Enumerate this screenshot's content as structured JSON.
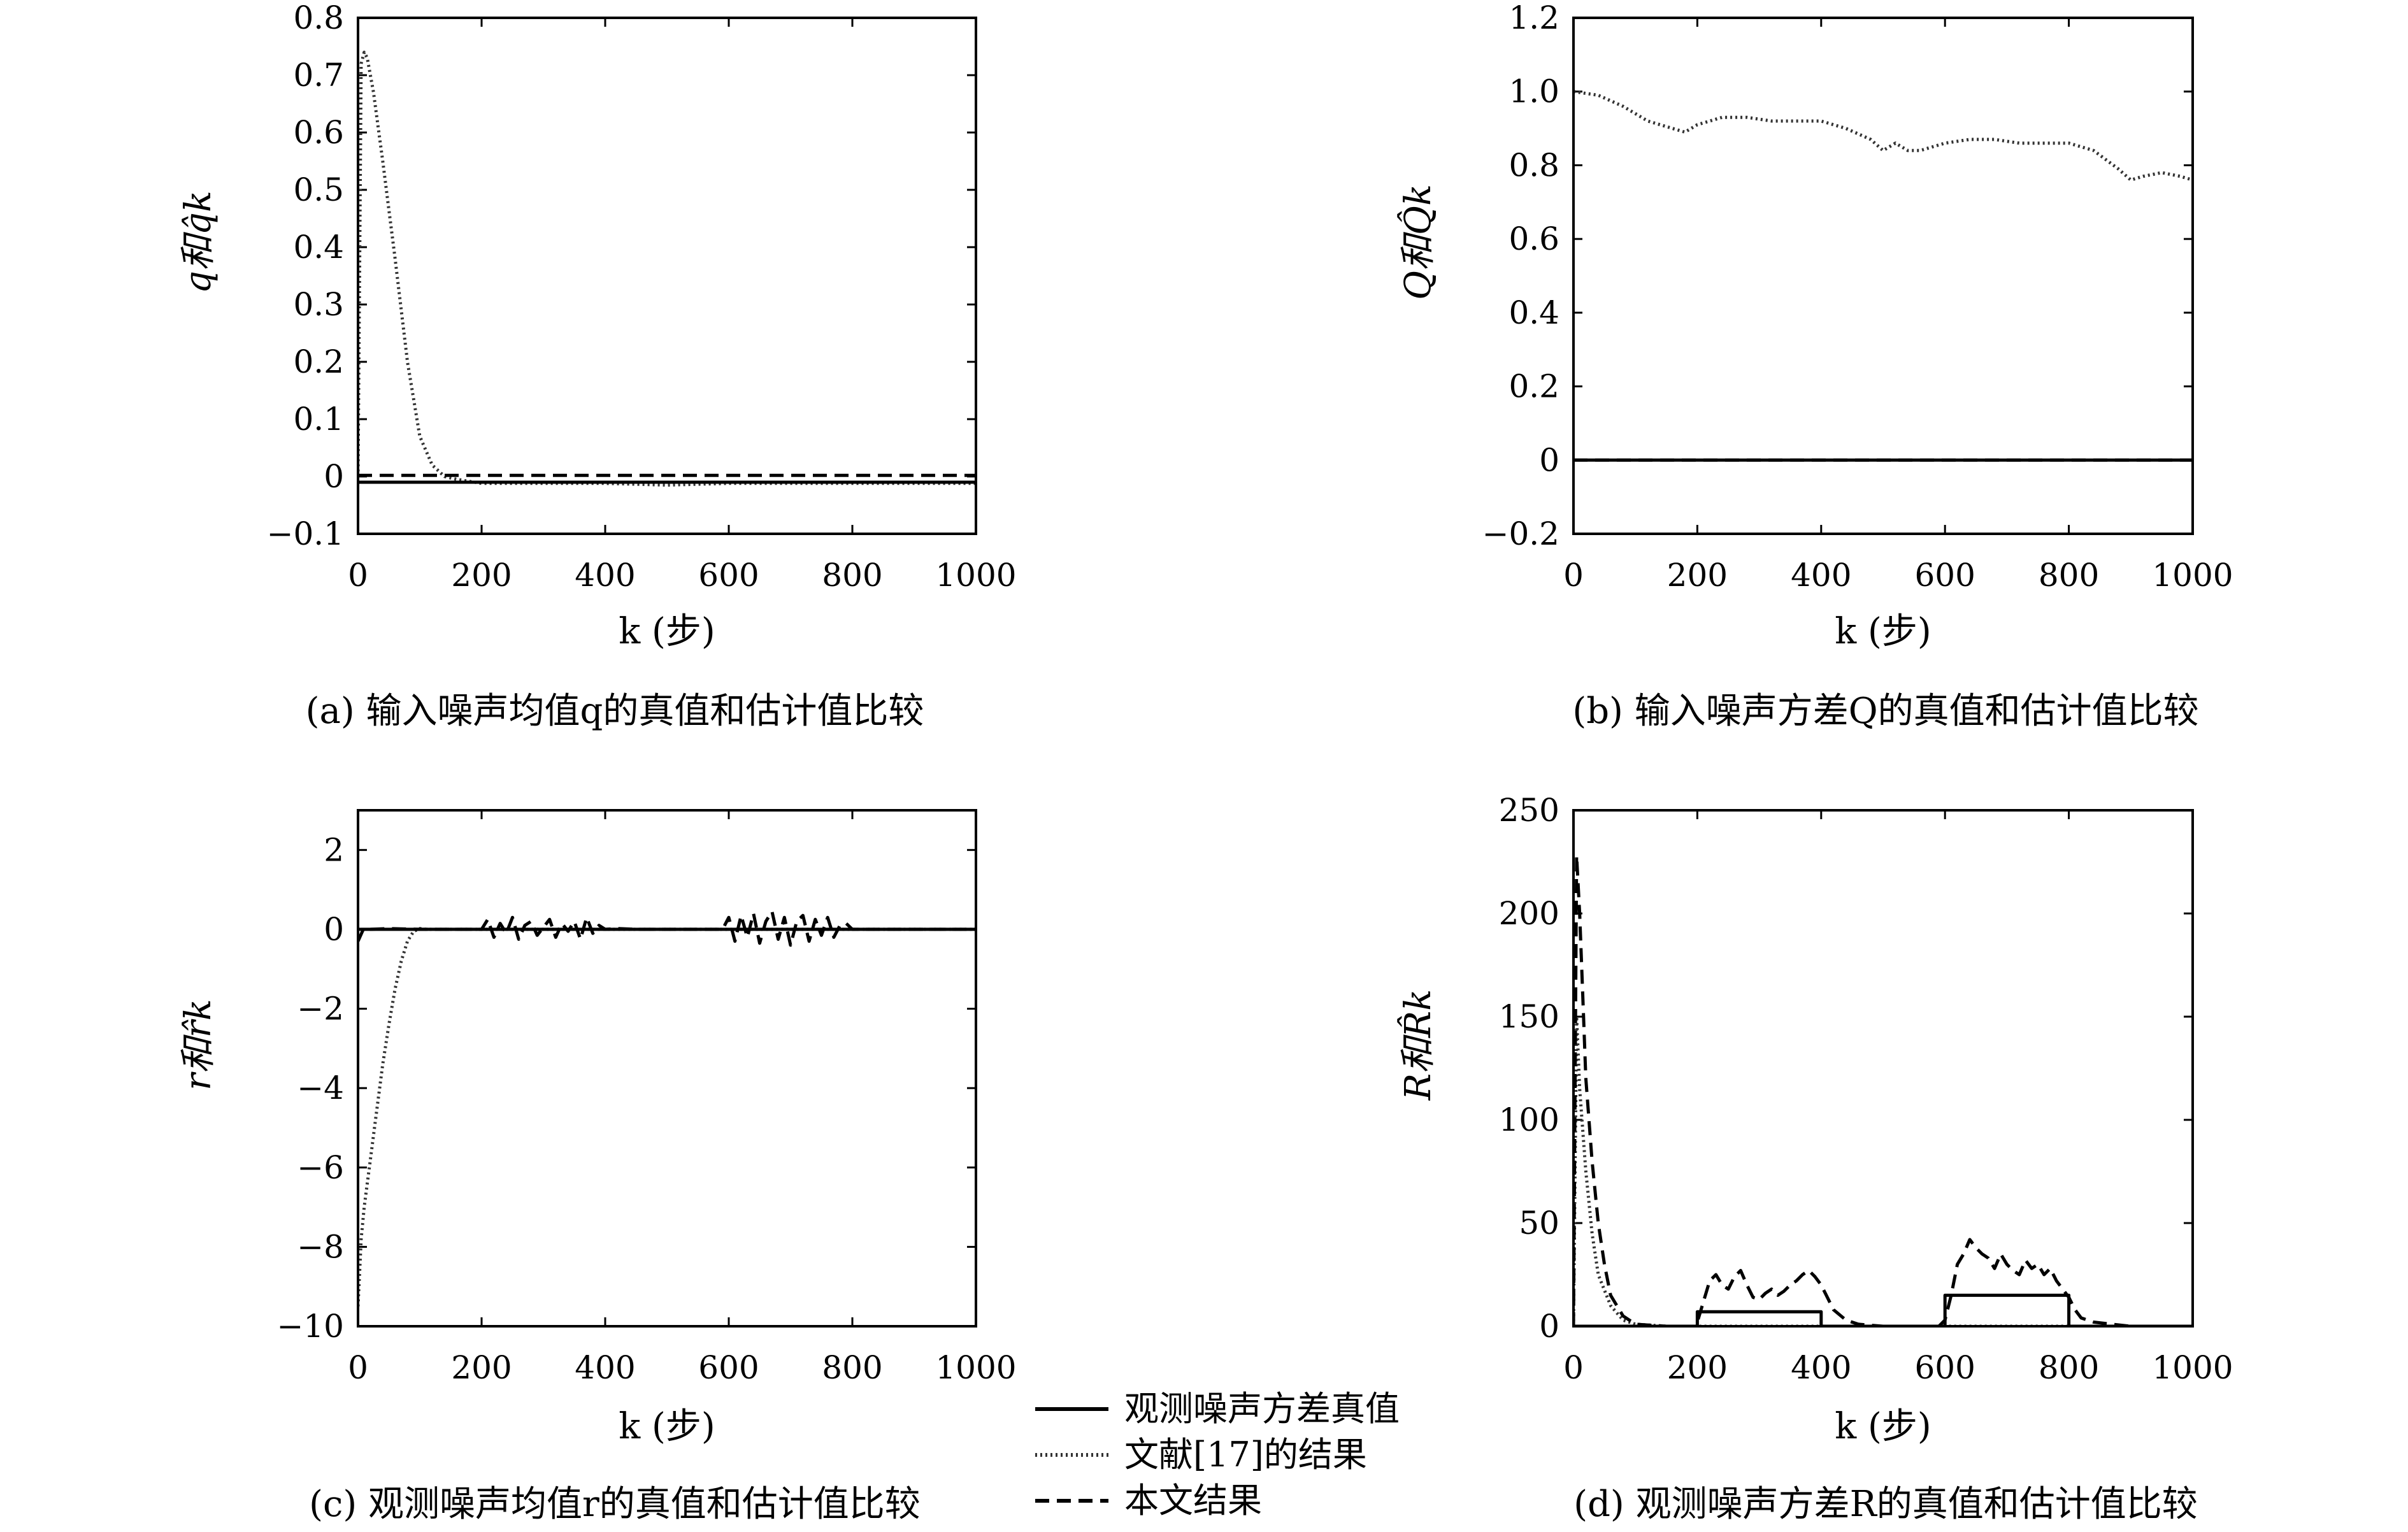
{
  "chart_data": [
    {
      "panel": "a",
      "type": "line",
      "caption": "(a) 输入噪声均值q的真值和估计值比较",
      "xlabel": "k (步)",
      "ylabel": "q和q̂k",
      "xlim": [
        0,
        1000
      ],
      "ylim": [
        -0.1,
        0.8
      ],
      "xticks": [
        0,
        200,
        400,
        600,
        800,
        1000
      ],
      "yticks": [
        -0.1,
        0,
        0.1,
        0.2,
        0.3,
        0.4,
        0.5,
        0.6,
        0.7,
        0.8
      ],
      "ytick_labels": [
        "−0.1",
        "0",
        "0.1",
        "0.2",
        "0.3",
        "0.4",
        "0.5",
        "0.6",
        "0.7",
        "0.8"
      ],
      "series": [
        {
          "style": "dotted",
          "x": [
            0,
            5,
            10,
            15,
            25,
            40,
            60,
            80,
            100,
            120,
            140,
            160,
            200,
            400,
            500,
            600,
            800,
            1000
          ],
          "y": [
            0,
            0.72,
            0.74,
            0.73,
            0.67,
            0.55,
            0.38,
            0.2,
            0.07,
            0.02,
            0.0,
            -0.005,
            -0.012,
            -0.012,
            -0.015,
            -0.012,
            -0.012,
            -0.012
          ]
        },
        {
          "style": "solid",
          "x": [
            0,
            1000
          ],
          "y": [
            -0.01,
            -0.01
          ]
        },
        {
          "style": "dashed",
          "x": [
            0,
            1000
          ],
          "y": [
            0.002,
            0.002
          ]
        }
      ]
    },
    {
      "panel": "b",
      "type": "line",
      "caption": "(b) 输入噪声方差Q的真值和估计值比较",
      "xlabel": "k (步)",
      "ylabel": "Q和Q̂k",
      "xlim": [
        0,
        1000
      ],
      "ylim": [
        -0.2,
        1.2
      ],
      "xticks": [
        0,
        200,
        400,
        600,
        800,
        1000
      ],
      "yticks": [
        -0.2,
        0,
        0.2,
        0.4,
        0.6,
        0.8,
        1.0,
        1.2
      ],
      "ytick_labels": [
        "−0.2",
        "0",
        "0.2",
        "0.4",
        "0.6",
        "0.8",
        "1.0",
        "1.2"
      ],
      "series": [
        {
          "style": "dotted",
          "x": [
            0,
            40,
            80,
            100,
            120,
            140,
            160,
            180,
            200,
            240,
            280,
            320,
            360,
            400,
            440,
            480,
            500,
            520,
            540,
            560,
            600,
            640,
            680,
            720,
            760,
            800,
            840,
            880,
            900,
            920,
            950,
            980,
            1000
          ],
          "y": [
            1.0,
            0.99,
            0.96,
            0.94,
            0.92,
            0.91,
            0.9,
            0.89,
            0.91,
            0.93,
            0.93,
            0.92,
            0.92,
            0.92,
            0.9,
            0.87,
            0.84,
            0.86,
            0.84,
            0.84,
            0.86,
            0.87,
            0.87,
            0.86,
            0.86,
            0.86,
            0.84,
            0.79,
            0.76,
            0.77,
            0.78,
            0.77,
            0.76
          ]
        },
        {
          "style": "solid",
          "x": [
            0,
            1000
          ],
          "y": [
            0,
            0
          ]
        },
        {
          "style": "dashed",
          "x": [
            0,
            1000
          ],
          "y": [
            0,
            0
          ]
        }
      ]
    },
    {
      "panel": "c",
      "type": "line",
      "caption": "(c) 观测噪声均值r的真值和估计值比较",
      "xlabel": "k (步)",
      "ylabel": "r和r̂k",
      "xlim": [
        0,
        1000
      ],
      "ylim": [
        -10,
        3
      ],
      "xticks": [
        0,
        200,
        400,
        600,
        800,
        1000
      ],
      "yticks": [
        -10,
        -8,
        -6,
        -4,
        -2,
        0,
        2
      ],
      "ytick_labels": [
        "−10",
        "−8",
        "−6",
        "−4",
        "−2",
        "0",
        "2"
      ],
      "series": [
        {
          "style": "dotted",
          "x": [
            0,
            5,
            10,
            20,
            30,
            40,
            50,
            60,
            70,
            80,
            90,
            100,
            110,
            120,
            1000
          ],
          "y": [
            -9.5,
            -7.8,
            -7.0,
            -5.8,
            -4.6,
            -3.4,
            -2.4,
            -1.5,
            -0.8,
            -0.3,
            -0.05,
            0.02,
            0.0,
            0.0,
            0.0
          ]
        },
        {
          "style": "solid",
          "x": [
            0,
            1000
          ],
          "y": [
            0,
            0
          ]
        },
        {
          "style": "dashed",
          "x": [
            0,
            10,
            20,
            50,
            100,
            150,
            200,
            210,
            220,
            230,
            240,
            250,
            260,
            270,
            280,
            290,
            300,
            310,
            320,
            330,
            340,
            350,
            360,
            370,
            380,
            390,
            400,
            420,
            450,
            500,
            550,
            590,
            600,
            610,
            620,
            630,
            640,
            650,
            660,
            670,
            680,
            690,
            700,
            710,
            720,
            730,
            740,
            750,
            760,
            770,
            780,
            790,
            800,
            850,
            900,
            950,
            1000
          ],
          "y": [
            -0.3,
            0.05,
            0.0,
            0.02,
            0.0,
            0.0,
            0.0,
            0.25,
            -0.2,
            0.15,
            -0.1,
            0.3,
            -0.25,
            0.1,
            0.2,
            -0.15,
            0.05,
            0.25,
            -0.2,
            0.15,
            -0.05,
            0.2,
            -0.25,
            0.3,
            -0.1,
            0.1,
            0.0,
            0.02,
            0.0,
            0.0,
            0.0,
            0.0,
            0.3,
            -0.3,
            0.35,
            -0.2,
            0.4,
            -0.35,
            0.2,
            0.45,
            -0.25,
            0.3,
            -0.4,
            0.2,
            0.35,
            -0.3,
            0.25,
            -0.15,
            0.3,
            -0.2,
            0.1,
            0.15,
            0.0,
            0.0,
            0.0,
            0.0,
            0.0
          ]
        }
      ]
    },
    {
      "panel": "d",
      "type": "line",
      "caption": "(d) 观测噪声方差R的真值和估计值比较",
      "xlabel": "k (步)",
      "ylabel": "R和R̂k",
      "xlim": [
        0,
        1000
      ],
      "ylim": [
        0,
        250
      ],
      "xticks": [
        0,
        200,
        400,
        600,
        800,
        1000
      ],
      "yticks": [
        0,
        50,
        100,
        150,
        200,
        250
      ],
      "ytick_labels": [
        "0",
        "50",
        "100",
        "150",
        "200",
        "250"
      ],
      "series": [
        {
          "style": "dotted",
          "x": [
            0,
            5,
            10,
            20,
            30,
            40,
            60,
            80,
            100,
            150,
            1000
          ],
          "y": [
            0,
            150,
            115,
            75,
            45,
            25,
            10,
            3,
            1,
            0,
            0
          ]
        },
        {
          "style": "solid",
          "x": [
            0,
            200,
            200,
            400,
            400,
            600,
            600,
            800,
            800,
            1000
          ],
          "y": [
            0,
            0,
            7,
            7,
            0,
            0,
            15,
            15,
            0,
            0
          ]
        },
        {
          "style": "dashed",
          "x": [
            0,
            5,
            10,
            15,
            20,
            30,
            40,
            50,
            60,
            80,
            100,
            150,
            195,
            200,
            210,
            220,
            230,
            240,
            250,
            260,
            270,
            280,
            290,
            300,
            310,
            320,
            330,
            340,
            350,
            360,
            370,
            380,
            390,
            400,
            410,
            420,
            440,
            460,
            500,
            550,
            590,
            600,
            610,
            620,
            630,
            640,
            650,
            660,
            670,
            680,
            690,
            700,
            710,
            720,
            730,
            740,
            750,
            760,
            770,
            780,
            790,
            800,
            810,
            820,
            840,
            870,
            900,
            950,
            1000
          ],
          "y": [
            0,
            228,
            200,
            160,
            120,
            80,
            50,
            30,
            15,
            5,
            1,
            0,
            0,
            2,
            12,
            22,
            25,
            20,
            18,
            24,
            27,
            20,
            14,
            13,
            16,
            18,
            15,
            17,
            20,
            22,
            25,
            27,
            24,
            20,
            14,
            8,
            3,
            1,
            0,
            0,
            0,
            3,
            15,
            30,
            35,
            42,
            38,
            35,
            33,
            28,
            35,
            30,
            27,
            25,
            32,
            28,
            30,
            25,
            28,
            22,
            18,
            14,
            8,
            4,
            2,
            1,
            0,
            0,
            0
          ]
        }
      ]
    }
  ],
  "legend": {
    "items": [
      {
        "label": "观测噪声方差真值",
        "style": "solid"
      },
      {
        "label": "文献[17]的结果",
        "style": "dotted"
      },
      {
        "label": "本文结果",
        "style": "dashed"
      }
    ]
  }
}
